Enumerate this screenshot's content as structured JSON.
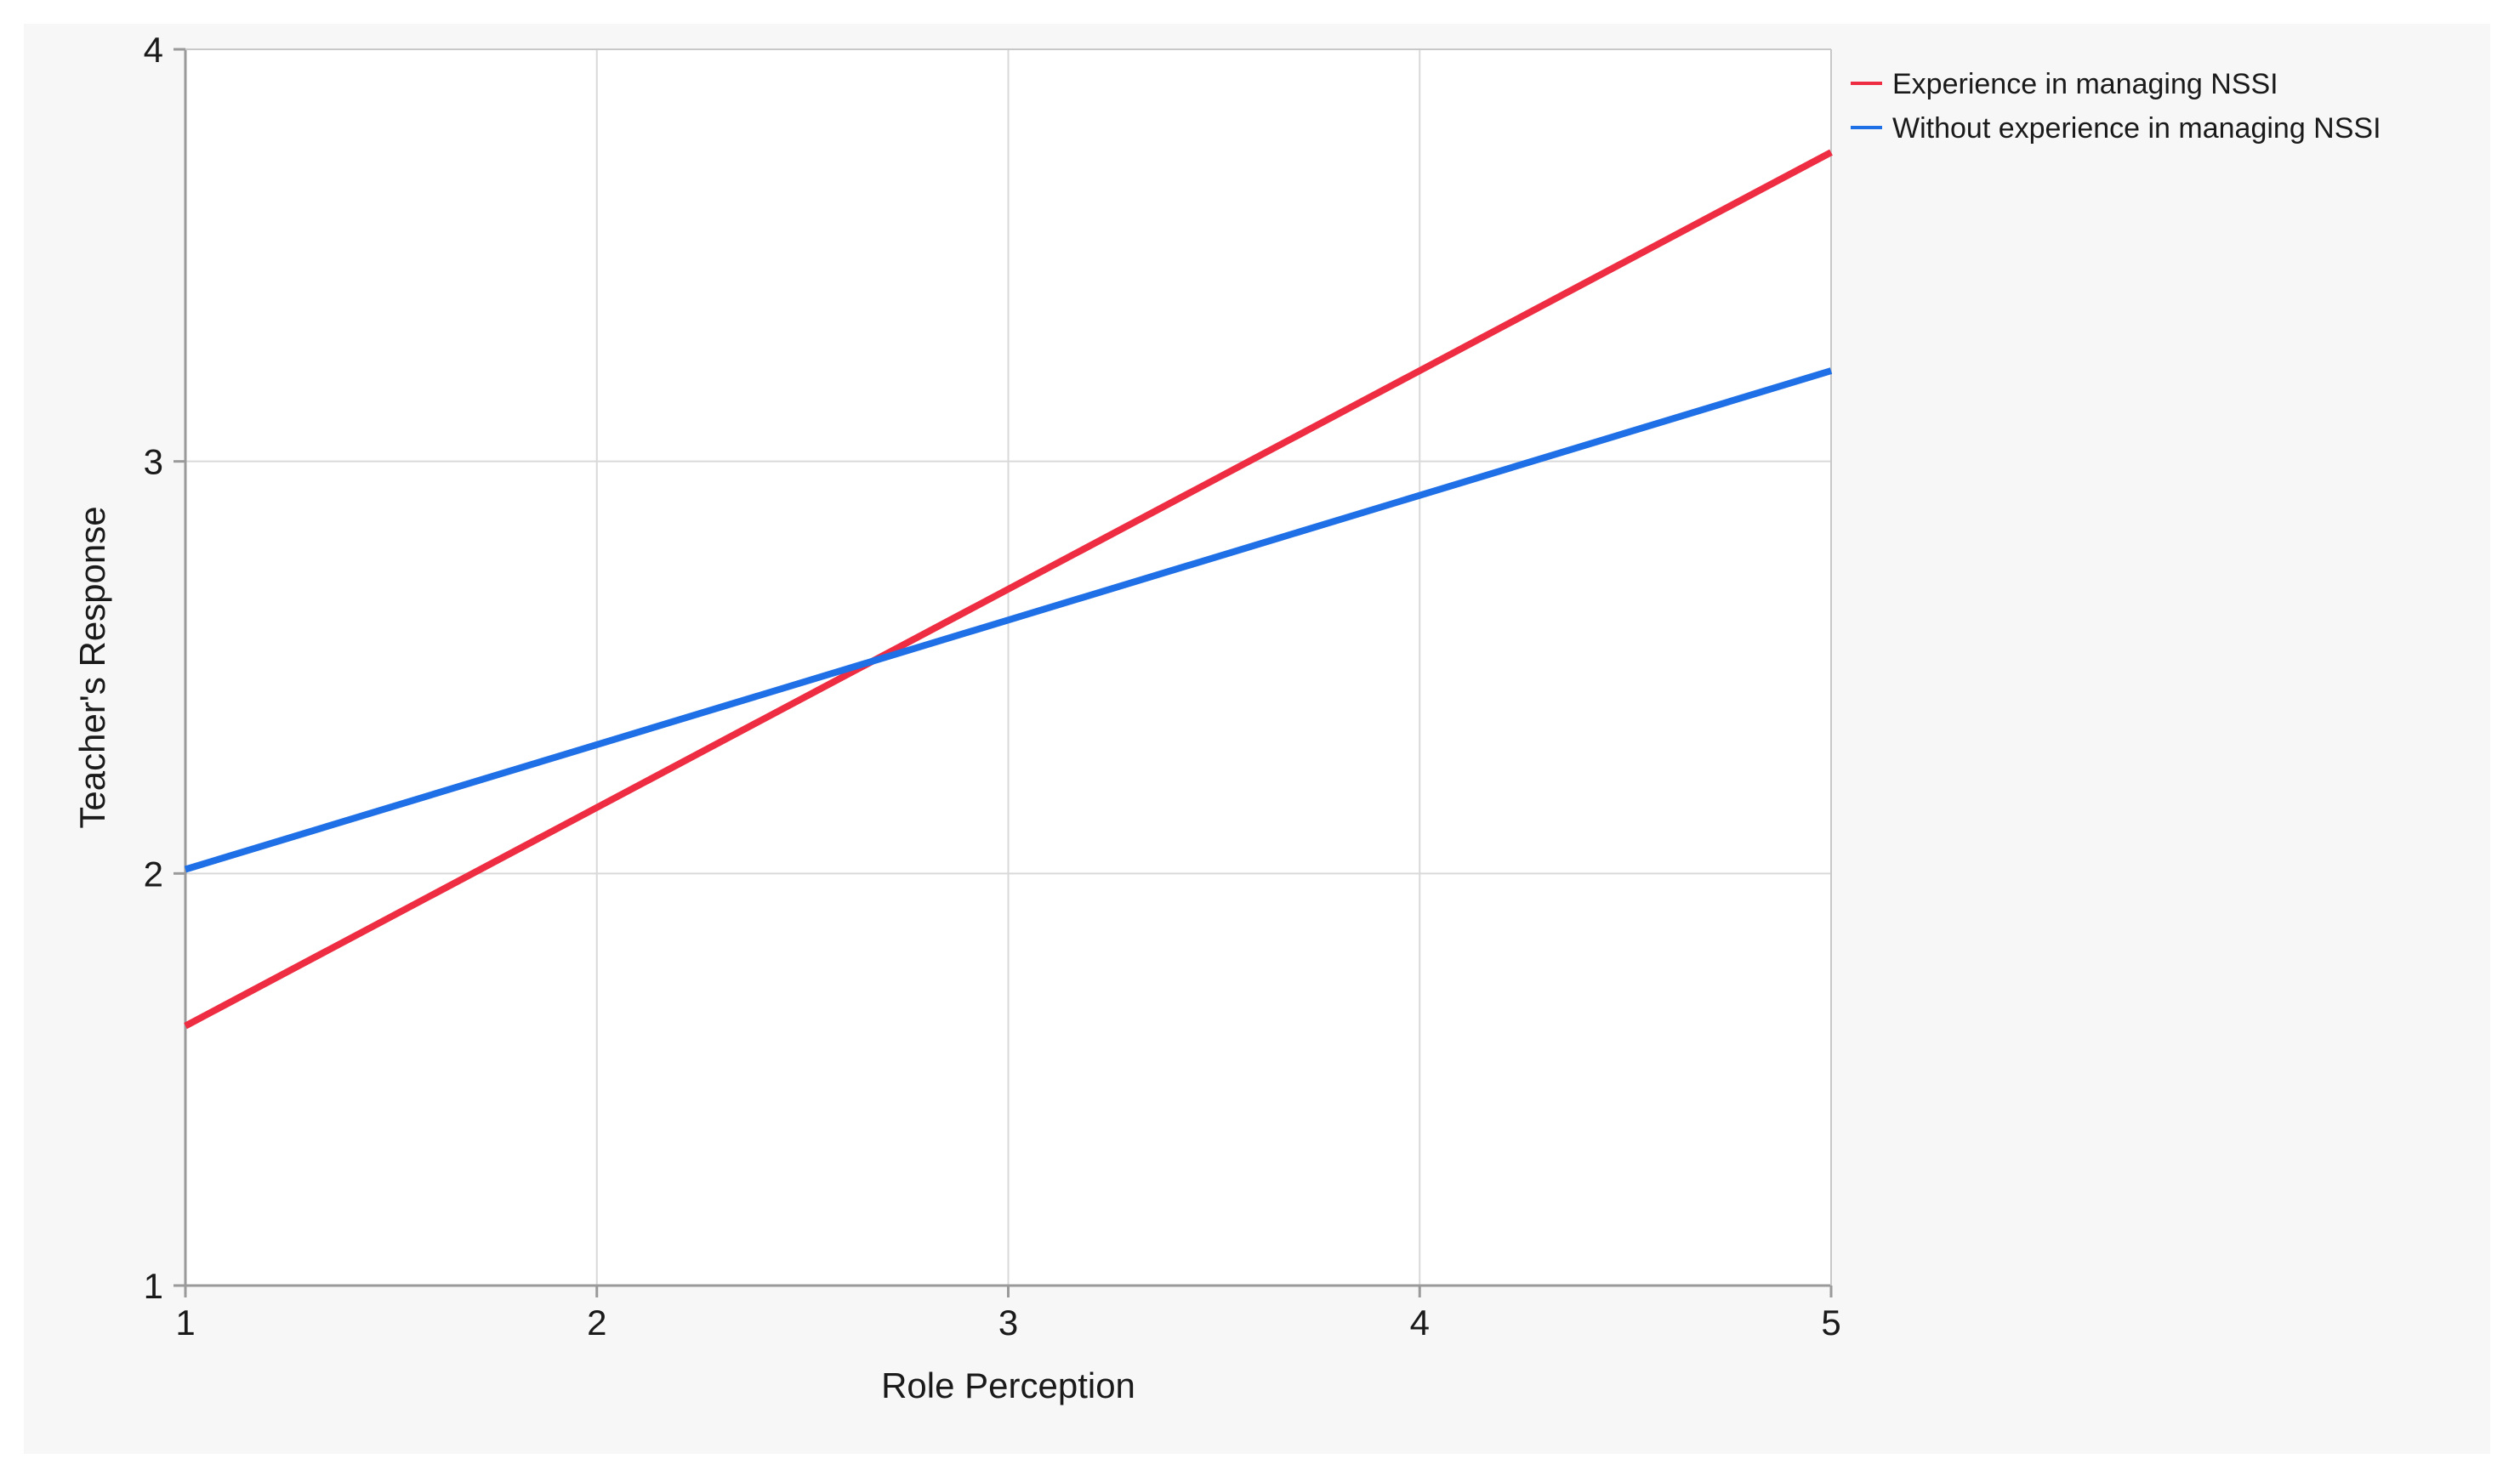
{
  "chart_data": {
    "type": "line",
    "title": "",
    "xlabel": "Role Perception",
    "ylabel": "Teacher's Response",
    "xlim": [
      1,
      5
    ],
    "ylim": [
      1,
      4
    ],
    "xticks": [
      1,
      2,
      3,
      4,
      5
    ],
    "yticks": [
      1,
      2,
      3,
      4
    ],
    "grid": true,
    "legend": "top-right",
    "series": [
      {
        "name": "Experience in managing NSSI",
        "color": "#ee2d43",
        "x": [
          1,
          5
        ],
        "y": [
          1.63,
          3.75
        ]
      },
      {
        "name": "Without experience in managing NSSI",
        "color": "#1f6fe6",
        "x": [
          1,
          5
        ],
        "y": [
          2.01,
          3.22
        ]
      }
    ]
  }
}
